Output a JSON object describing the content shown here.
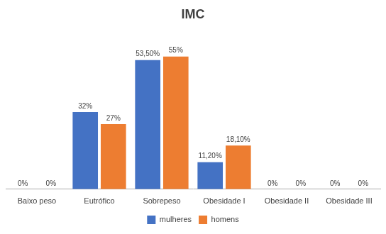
{
  "chart_data": {
    "type": "bar",
    "title": "IMC",
    "categories": [
      "Baixo peso",
      "Eutrófico",
      "Sobrepeso",
      "Obesidade I",
      "Obesidade II",
      "Obesidade III"
    ],
    "series": [
      {
        "name": "mulheres",
        "color": "#4472C4",
        "values": [
          0,
          32,
          53.5,
          11.2,
          0,
          0
        ],
        "value_labels": [
          "0%",
          "32%",
          "53,50%",
          "11,20%",
          "0%",
          "0%"
        ]
      },
      {
        "name": "homens",
        "color": "#ED7D31",
        "values": [
          0,
          27,
          55,
          18.1,
          0,
          0
        ],
        "value_labels": [
          "0%",
          "27%",
          "55%",
          "18,10%",
          "0%",
          "0%"
        ]
      }
    ],
    "ylim": [
      0,
      65
    ],
    "grid": false,
    "legend": "bottom",
    "data_labels": true,
    "tick_labels": "x"
  }
}
